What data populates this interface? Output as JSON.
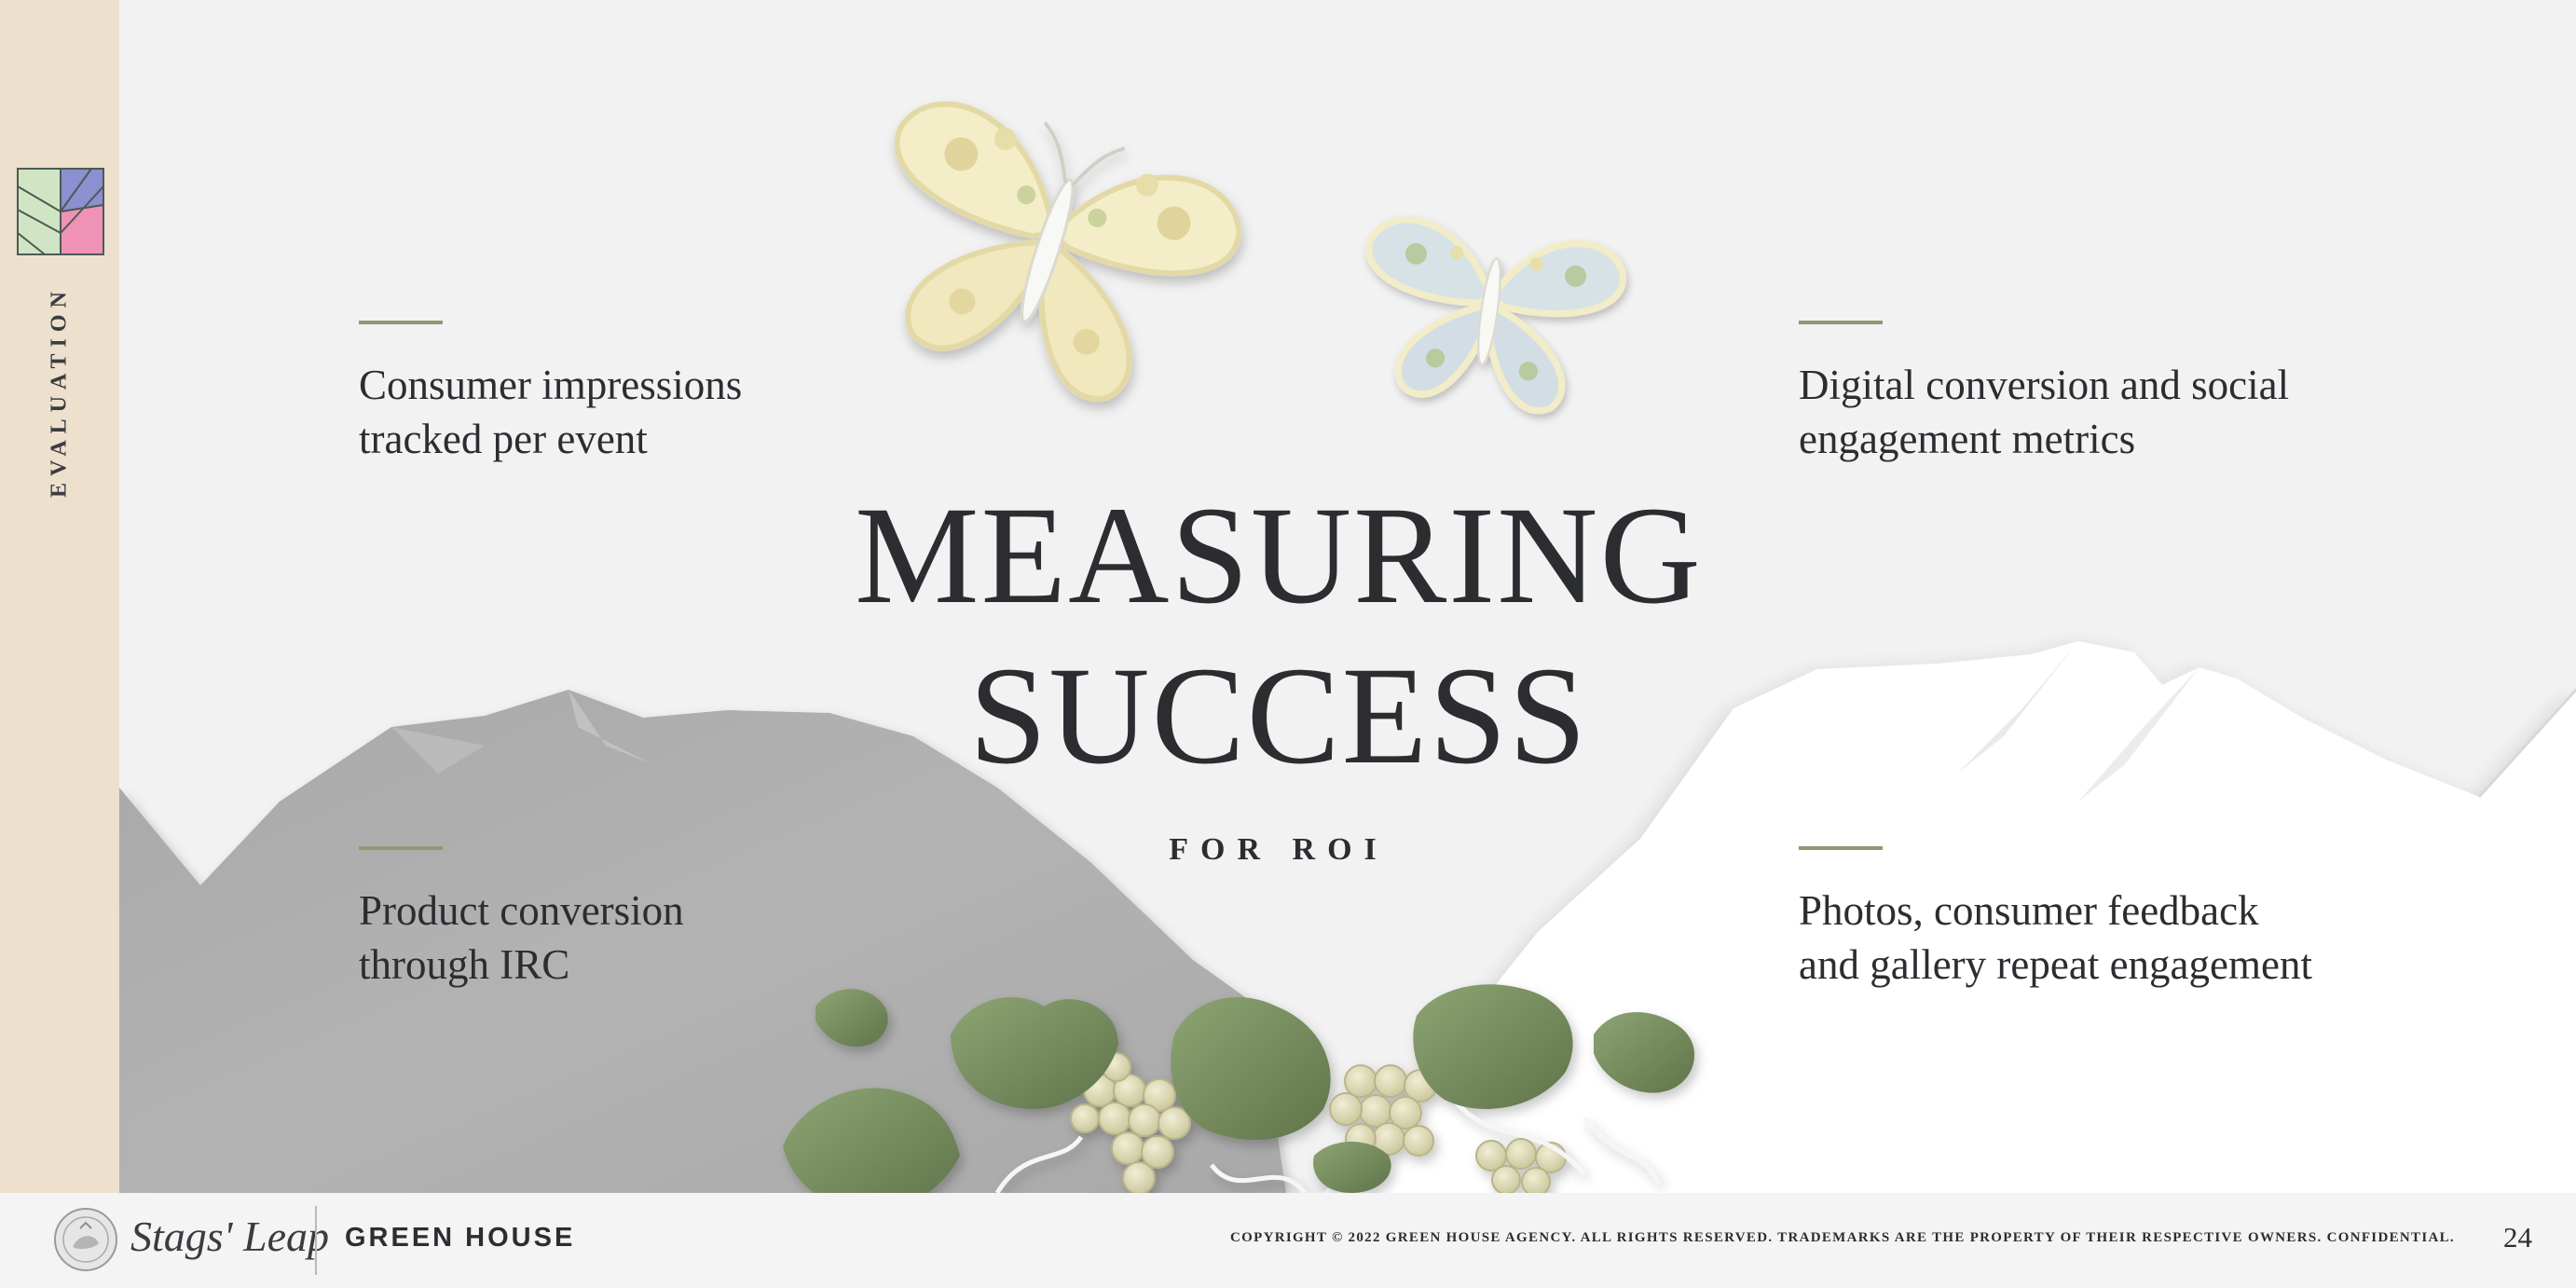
{
  "rail": {
    "section_label": "EVALUATION",
    "logo_colors": [
      "#cfe5c3",
      "#8c8fd0",
      "#ef92b6"
    ]
  },
  "heading": {
    "line1": "MEASURING",
    "line2": "SUCCESS",
    "subtitle": "FOR ROI"
  },
  "metrics": [
    {
      "line1": "Consumer impressions",
      "line2": "tracked per event"
    },
    {
      "line1": "Digital conversion and social",
      "line2": "engagement metrics"
    },
    {
      "line1": "Product conversion",
      "line2": "through IRC"
    },
    {
      "line1": "Photos, consumer feedback",
      "line2": "and gallery repeat engagement"
    }
  ],
  "footer": {
    "client_logo_text": "Stags' Leap",
    "agency": "GREEN HOUSE",
    "copyright": "COPYRIGHT © 2022 GREEN HOUSE AGENCY. ALL RIGHTS RESERVED. TRADEMARKS ARE THE PROPERTY OF THEIR RESPECTIVE OWNERS. CONFIDENTIAL.",
    "page_number": "24"
  },
  "colors": {
    "background": "#f2f2f2",
    "rail": "#ede0cd",
    "accent_rule": "#8e9a74",
    "text": "#2b2d31",
    "mountain_grey": "#b1b1b1",
    "mountain_white": "#ffffff",
    "leaf_green": "#7f9566",
    "grape": "#dcd9b3"
  },
  "icons": [
    "butterfly-yellow-icon",
    "butterfly-blue-icon",
    "brand-leaf-logo-icon",
    "winery-seal-icon"
  ]
}
